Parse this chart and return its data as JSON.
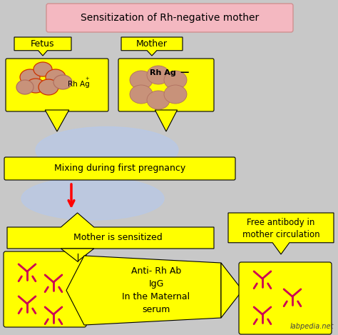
{
  "bg_color": "#c8c8c8",
  "title_text": "Sensitization of Rh-negative mother",
  "title_box_color": "#f4b8c1",
  "yellow": "#ffff00",
  "rbc_color": "#c8927a",
  "rbc_outline": "#b07060",
  "rbc_red_outline": "#cc3300",
  "ab_color": "#cc0055",
  "blue_blob_color": "#b8c8e8",
  "watermark": "labpedia.net",
  "label_fetus": "Fetus",
  "label_mother": "Mother",
  "label_rh_pos": "Rh Ag",
  "label_rh_neg": "Rh Ag",
  "label_mixing": "Mixing during first pregnancy",
  "label_sensitized": "Mother is sensitized",
  "label_anti": "Anti- Rh Ab\nIgG\nIn the Maternal\nserum",
  "label_free": "Free antibody in\nmother circulation"
}
